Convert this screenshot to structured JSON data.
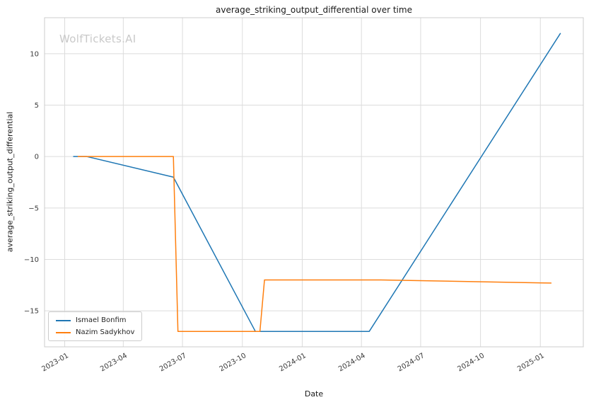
{
  "chart_data": {
    "type": "line",
    "title": "average_striking_output_differential over time",
    "xlabel": "Date",
    "ylabel": "average_striking_output_differential",
    "watermark": "WolfTickets.AI",
    "legend_position": "lower left",
    "grid": true,
    "xlim": [
      "2022-12-01",
      "2025-03-08"
    ],
    "ylim": [
      -18.5,
      13.5
    ],
    "x_ticks": [
      "2023-01",
      "2023-04",
      "2023-07",
      "2023-10",
      "2024-01",
      "2024-04",
      "2024-07",
      "2024-10",
      "2025-01"
    ],
    "y_ticks": [
      -15,
      -10,
      -5,
      0,
      5,
      10
    ],
    "colors": {
      "grid": "#dcdcdc",
      "frame": "#cccccc",
      "tick_text": "#3a3a3a",
      "watermark": "#c9c9c9"
    },
    "series": [
      {
        "name": "Ismael Bonfim",
        "color": "#1f77b4",
        "x": [
          "2023-01-14",
          "2023-02-04",
          "2023-06-17",
          "2023-10-21",
          "2024-04-13",
          "2025-02-01"
        ],
        "y": [
          0,
          0,
          -2,
          -17,
          -17,
          12
        ]
      },
      {
        "name": "Nazim Sadykhov",
        "color": "#ff7f0e",
        "x": [
          "2023-01-21",
          "2023-06-17",
          "2023-06-24",
          "2023-10-28",
          "2023-11-04",
          "2024-05-01",
          "2025-01-18"
        ],
        "y": [
          0,
          0,
          -17,
          -17,
          -12,
          -12,
          -12.3
        ]
      }
    ]
  }
}
